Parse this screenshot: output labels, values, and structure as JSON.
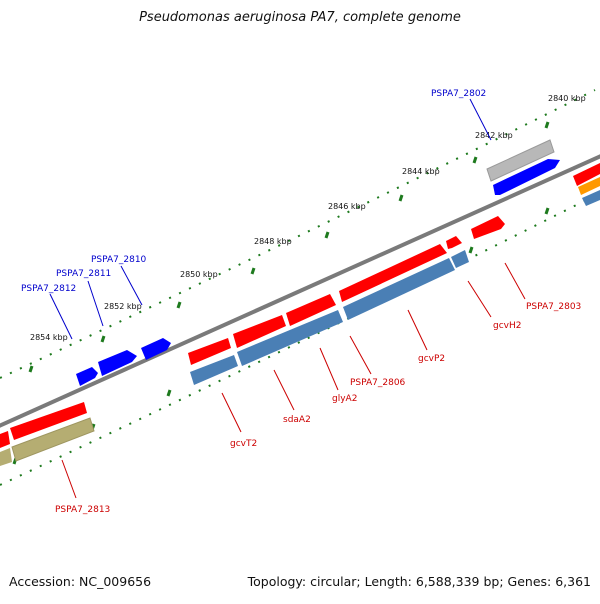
{
  "title": "Pseudomonas aeruginosa PA7, complete genome",
  "accession": "Accession: NC_009656",
  "topology": "Topology: circular; Length: 6,588,339 bp; Genes: 6,361",
  "colors": {
    "backbone": "#7a7a7a",
    "forward_gene": "#ff0000",
    "reverse_gene": "#0000ff",
    "forward_label": "#cc0000",
    "reverse_label": "#0000cc",
    "cds": "#4a7fb5",
    "grey_feature": "#b8b8b8",
    "olive_feature": "#b5ad72",
    "orange_feature": "#ff9900",
    "ruler": "#1e7a1e"
  },
  "ruler_labels": [
    "2840 kbp",
    "2842 kbp",
    "2844 kbp",
    "2846 kbp",
    "2848 kbp",
    "2850 kbp",
    "2852 kbp",
    "2854 kbp"
  ],
  "reverse_genes": [
    "PSPA7_2802",
    "PSPA7_2810",
    "PSPA7_2811",
    "PSPA7_2812"
  ],
  "forward_genes": [
    "PSPA7_2803",
    "gcvH2",
    "gcvP2",
    "PSPA7_2806",
    "glyA2",
    "sdaA2",
    "gcvT2",
    "PSPA7_2813"
  ]
}
